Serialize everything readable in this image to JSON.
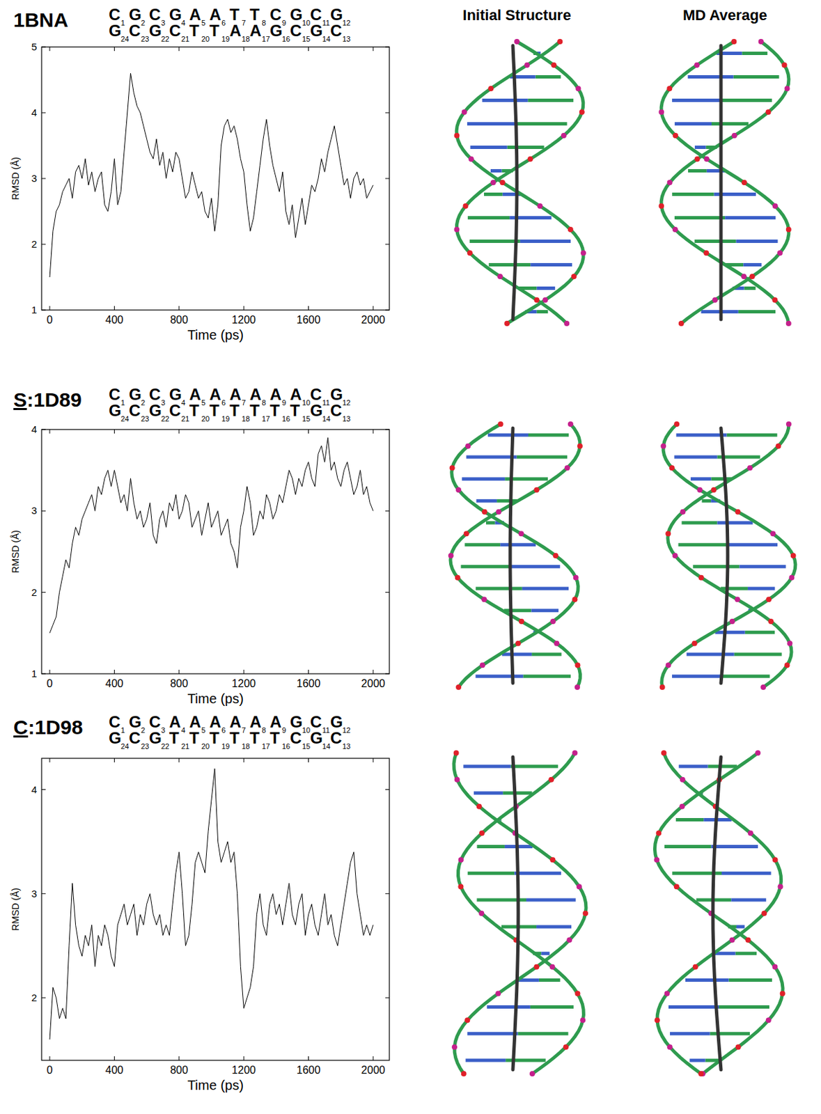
{
  "column_heads": [
    "Initial Structure",
    "MD Average"
  ],
  "chart_data": [
    {
      "type": "line",
      "title": "1BNA",
      "x_label": "Time (ps)",
      "y_label": "RMSD (Å)",
      "color": "#000000",
      "sequence": {
        "top": [
          "C",
          "G",
          "C",
          "G",
          "A",
          "A",
          "T",
          "T",
          "C",
          "G",
          "C",
          "G"
        ],
        "top_numbers": [
          1,
          2,
          3,
          4,
          5,
          6,
          7,
          8,
          9,
          10,
          11,
          12
        ],
        "bottom": [
          "G",
          "C",
          "G",
          "C",
          "T",
          "T",
          "A",
          "A",
          "G",
          "C",
          "G",
          "C"
        ],
        "bottom_numbers": [
          24,
          23,
          22,
          21,
          20,
          19,
          18,
          17,
          16,
          15,
          14,
          13
        ]
      },
      "xlim": [
        -50,
        2100
      ],
      "xticks": [
        0,
        400,
        800,
        1200,
        1600,
        2000
      ],
      "ylim": [
        1,
        5
      ],
      "yticks": [
        1,
        2,
        3,
        4,
        5
      ],
      "x": [
        0,
        20,
        40,
        60,
        80,
        100,
        120,
        140,
        160,
        180,
        200,
        220,
        240,
        260,
        280,
        300,
        320,
        340,
        360,
        380,
        400,
        420,
        440,
        460,
        480,
        500,
        520,
        540,
        560,
        580,
        600,
        620,
        640,
        660,
        680,
        700,
        720,
        740,
        760,
        780,
        800,
        820,
        840,
        860,
        880,
        900,
        920,
        940,
        960,
        980,
        1000,
        1020,
        1040,
        1060,
        1080,
        1100,
        1120,
        1140,
        1160,
        1180,
        1200,
        1220,
        1240,
        1260,
        1280,
        1300,
        1320,
        1340,
        1360,
        1380,
        1400,
        1420,
        1440,
        1460,
        1480,
        1500,
        1520,
        1540,
        1560,
        1580,
        1600,
        1620,
        1640,
        1660,
        1680,
        1700,
        1720,
        1740,
        1760,
        1780,
        1800,
        1820,
        1840,
        1860,
        1880,
        1900,
        1920,
        1940,
        1960,
        1980,
        2000
      ],
      "values": [
        1.5,
        2.2,
        2.5,
        2.6,
        2.8,
        2.9,
        3.0,
        2.7,
        3.1,
        3.2,
        3.0,
        3.3,
        2.9,
        3.1,
        2.8,
        3.0,
        3.1,
        2.6,
        2.5,
        2.8,
        3.3,
        2.6,
        2.8,
        3.4,
        4.0,
        4.6,
        4.3,
        4.1,
        4.0,
        3.8,
        3.6,
        3.4,
        3.3,
        3.6,
        3.2,
        3.4,
        3.0,
        3.3,
        3.1,
        3.4,
        3.3,
        3.0,
        2.7,
        2.8,
        3.1,
        2.9,
        2.7,
        2.8,
        2.5,
        2.4,
        2.7,
        2.2,
        2.6,
        3.5,
        3.8,
        3.9,
        3.7,
        3.8,
        3.6,
        3.3,
        3.1,
        2.6,
        2.2,
        2.4,
        2.8,
        3.2,
        3.6,
        3.9,
        3.5,
        3.2,
        3.0,
        2.8,
        3.1,
        2.5,
        2.3,
        2.6,
        2.1,
        2.4,
        2.7,
        2.3,
        2.6,
        2.9,
        2.8,
        3.0,
        3.3,
        3.1,
        3.4,
        3.6,
        3.8,
        3.5,
        3.2,
        2.9,
        3.0,
        2.7,
        3.0,
        3.1,
        2.9,
        3.0,
        2.7,
        2.8,
        2.9
      ]
    },
    {
      "type": "line",
      "title": "S:1D89",
      "x_label": "Time (ps)",
      "y_label": "RMSD (Å)",
      "color": "#000000",
      "sequence": {
        "top": [
          "C",
          "G",
          "C",
          "G",
          "A",
          "A",
          "A",
          "A",
          "A",
          "A",
          "C",
          "G"
        ],
        "top_numbers": [
          1,
          2,
          3,
          4,
          5,
          6,
          7,
          8,
          9,
          10,
          11,
          12
        ],
        "bottom": [
          "G",
          "C",
          "G",
          "C",
          "T",
          "T",
          "T",
          "T",
          "T",
          "T",
          "G",
          "C"
        ],
        "bottom_numbers": [
          24,
          23,
          22,
          21,
          20,
          19,
          18,
          17,
          16,
          15,
          14,
          13
        ]
      },
      "xlim": [
        -50,
        2100
      ],
      "xticks": [
        0,
        400,
        800,
        1200,
        1600,
        2000
      ],
      "ylim": [
        1,
        4
      ],
      "yticks": [
        1,
        2,
        3,
        4
      ],
      "x": [
        0,
        20,
        40,
        60,
        80,
        100,
        120,
        140,
        160,
        180,
        200,
        220,
        240,
        260,
        280,
        300,
        320,
        340,
        360,
        380,
        400,
        420,
        440,
        460,
        480,
        500,
        520,
        540,
        560,
        580,
        600,
        620,
        640,
        660,
        680,
        700,
        720,
        740,
        760,
        780,
        800,
        820,
        840,
        860,
        880,
        900,
        920,
        940,
        960,
        980,
        1000,
        1020,
        1040,
        1060,
        1080,
        1100,
        1120,
        1140,
        1160,
        1180,
        1200,
        1220,
        1240,
        1260,
        1280,
        1300,
        1320,
        1340,
        1360,
        1380,
        1400,
        1420,
        1440,
        1460,
        1480,
        1500,
        1520,
        1540,
        1560,
        1580,
        1600,
        1620,
        1640,
        1660,
        1680,
        1700,
        1720,
        1740,
        1760,
        1780,
        1800,
        1820,
        1840,
        1860,
        1880,
        1900,
        1920,
        1940,
        1960,
        1980,
        2000
      ],
      "values": [
        1.5,
        1.6,
        1.7,
        2.0,
        2.2,
        2.4,
        2.3,
        2.6,
        2.8,
        2.7,
        2.9,
        3.0,
        3.1,
        3.2,
        3.0,
        3.3,
        3.2,
        3.4,
        3.5,
        3.3,
        3.5,
        3.3,
        3.1,
        3.2,
        3.0,
        3.4,
        3.1,
        2.9,
        3.0,
        2.8,
        2.9,
        3.1,
        2.7,
        2.6,
        2.9,
        3.0,
        2.8,
        3.1,
        3.0,
        3.2,
        2.9,
        3.0,
        3.2,
        3.1,
        2.8,
        2.9,
        3.0,
        2.7,
        2.9,
        3.1,
        2.8,
        2.9,
        3.0,
        2.7,
        2.8,
        2.9,
        2.6,
        2.5,
        2.3,
        2.8,
        3.0,
        3.3,
        3.1,
        2.7,
        2.8,
        3.0,
        2.9,
        3.2,
        3.1,
        2.9,
        3.0,
        3.2,
        3.1,
        3.3,
        3.5,
        3.4,
        3.2,
        3.4,
        3.3,
        3.5,
        3.6,
        3.4,
        3.3,
        3.7,
        3.8,
        3.6,
        3.9,
        3.5,
        3.6,
        3.4,
        3.3,
        3.5,
        3.6,
        3.4,
        3.2,
        3.3,
        3.5,
        3.2,
        3.3,
        3.1,
        3.0
      ]
    },
    {
      "type": "line",
      "title": "C:1D98",
      "x_label": "Time (ps)",
      "y_label": "RMSD (Å)",
      "color": "#000000",
      "sequence": {
        "top": [
          "C",
          "G",
          "C",
          "A",
          "A",
          "A",
          "A",
          "A",
          "A",
          "G",
          "C",
          "G"
        ],
        "top_numbers": [
          1,
          2,
          3,
          4,
          5,
          6,
          7,
          8,
          9,
          10,
          11,
          12
        ],
        "bottom": [
          "G",
          "C",
          "G",
          "T",
          "T",
          "T",
          "T",
          "T",
          "T",
          "C",
          "G",
          "C"
        ],
        "bottom_numbers": [
          24,
          23,
          22,
          21,
          20,
          19,
          18,
          17,
          16,
          15,
          14,
          13
        ]
      },
      "xlim": [
        -50,
        2100
      ],
      "xticks": [
        0,
        400,
        800,
        1200,
        1600,
        2000
      ],
      "ylim": [
        1.4,
        4.3
      ],
      "yticks": [
        2,
        3,
        4
      ],
      "x": [
        0,
        20,
        40,
        60,
        80,
        100,
        120,
        140,
        160,
        180,
        200,
        220,
        240,
        260,
        280,
        300,
        320,
        340,
        360,
        380,
        400,
        420,
        440,
        460,
        480,
        500,
        520,
        540,
        560,
        580,
        600,
        620,
        640,
        660,
        680,
        700,
        720,
        740,
        760,
        780,
        800,
        820,
        840,
        860,
        880,
        900,
        920,
        940,
        960,
        980,
        1000,
        1020,
        1040,
        1060,
        1080,
        1100,
        1120,
        1140,
        1160,
        1180,
        1200,
        1220,
        1240,
        1260,
        1280,
        1300,
        1320,
        1340,
        1360,
        1380,
        1400,
        1420,
        1440,
        1460,
        1480,
        1500,
        1520,
        1540,
        1560,
        1580,
        1600,
        1620,
        1640,
        1660,
        1680,
        1700,
        1720,
        1740,
        1760,
        1780,
        1800,
        1820,
        1840,
        1860,
        1880,
        1900,
        1920,
        1940,
        1960,
        1980,
        2000
      ],
      "values": [
        1.6,
        2.1,
        2.0,
        1.8,
        1.9,
        1.8,
        2.5,
        3.1,
        2.7,
        2.5,
        2.4,
        2.6,
        2.5,
        2.7,
        2.3,
        2.6,
        2.5,
        2.7,
        2.6,
        2.4,
        2.3,
        2.7,
        2.8,
        2.9,
        2.7,
        2.8,
        2.9,
        2.6,
        2.8,
        2.7,
        2.9,
        3.0,
        2.8,
        2.7,
        2.8,
        2.6,
        2.7,
        2.6,
        2.9,
        3.2,
        3.4,
        3.0,
        2.5,
        2.6,
        2.9,
        3.3,
        3.4,
        3.3,
        3.2,
        3.6,
        3.9,
        4.2,
        3.5,
        3.3,
        3.4,
        3.5,
        3.3,
        3.4,
        3.0,
        2.3,
        1.9,
        2.0,
        2.1,
        2.3,
        2.8,
        3.0,
        2.7,
        2.6,
        2.9,
        3.0,
        2.8,
        2.9,
        2.7,
        2.9,
        3.1,
        2.8,
        2.7,
        2.9,
        3.0,
        2.6,
        2.8,
        2.9,
        2.7,
        2.6,
        2.8,
        3.0,
        2.7,
        2.8,
        2.6,
        2.5,
        2.7,
        2.9,
        3.1,
        3.3,
        3.4,
        3.0,
        2.8,
        2.6,
        2.7,
        2.6,
        2.7
      ]
    }
  ]
}
